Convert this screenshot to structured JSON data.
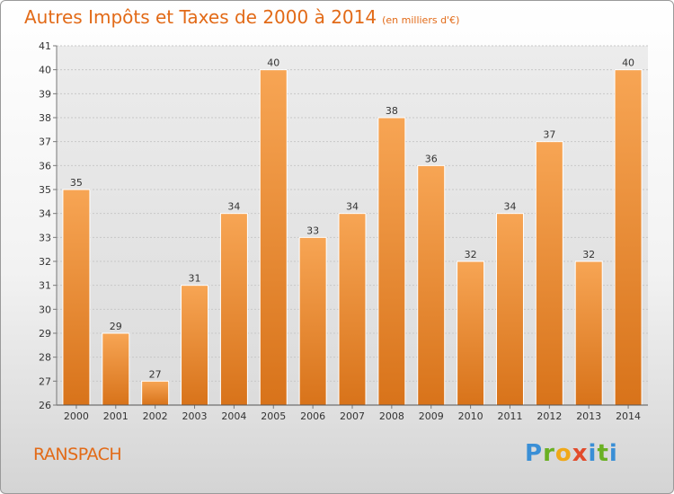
{
  "header": {
    "title": "Autres Impôts et Taxes de 2000 à 2014",
    "subtitle": "(en milliers d'€)"
  },
  "footer": {
    "commune": "RANSPACH",
    "logo_letters": [
      "P",
      "r",
      "o",
      "x",
      "i",
      "t",
      "i"
    ]
  },
  "chart_data": {
    "type": "bar",
    "title": "Autres Impôts et Taxes de 2000 à 2014",
    "subtitle": "(en milliers d'€)",
    "categories": [
      "2000",
      "2001",
      "2002",
      "2003",
      "2004",
      "2005",
      "2006",
      "2007",
      "2008",
      "2009",
      "2010",
      "2011",
      "2012",
      "2013",
      "2014"
    ],
    "values": [
      35,
      29,
      27,
      31,
      34,
      40,
      33,
      34,
      38,
      36,
      32,
      34,
      37,
      32,
      40
    ],
    "ylim": [
      26,
      41
    ],
    "yticks": [
      26,
      27,
      28,
      29,
      30,
      31,
      32,
      33,
      34,
      35,
      36,
      37,
      38,
      39,
      40,
      41
    ],
    "grid": true,
    "bar_color_top": "#f7a554",
    "bar_color_bottom": "#d8731a"
  }
}
